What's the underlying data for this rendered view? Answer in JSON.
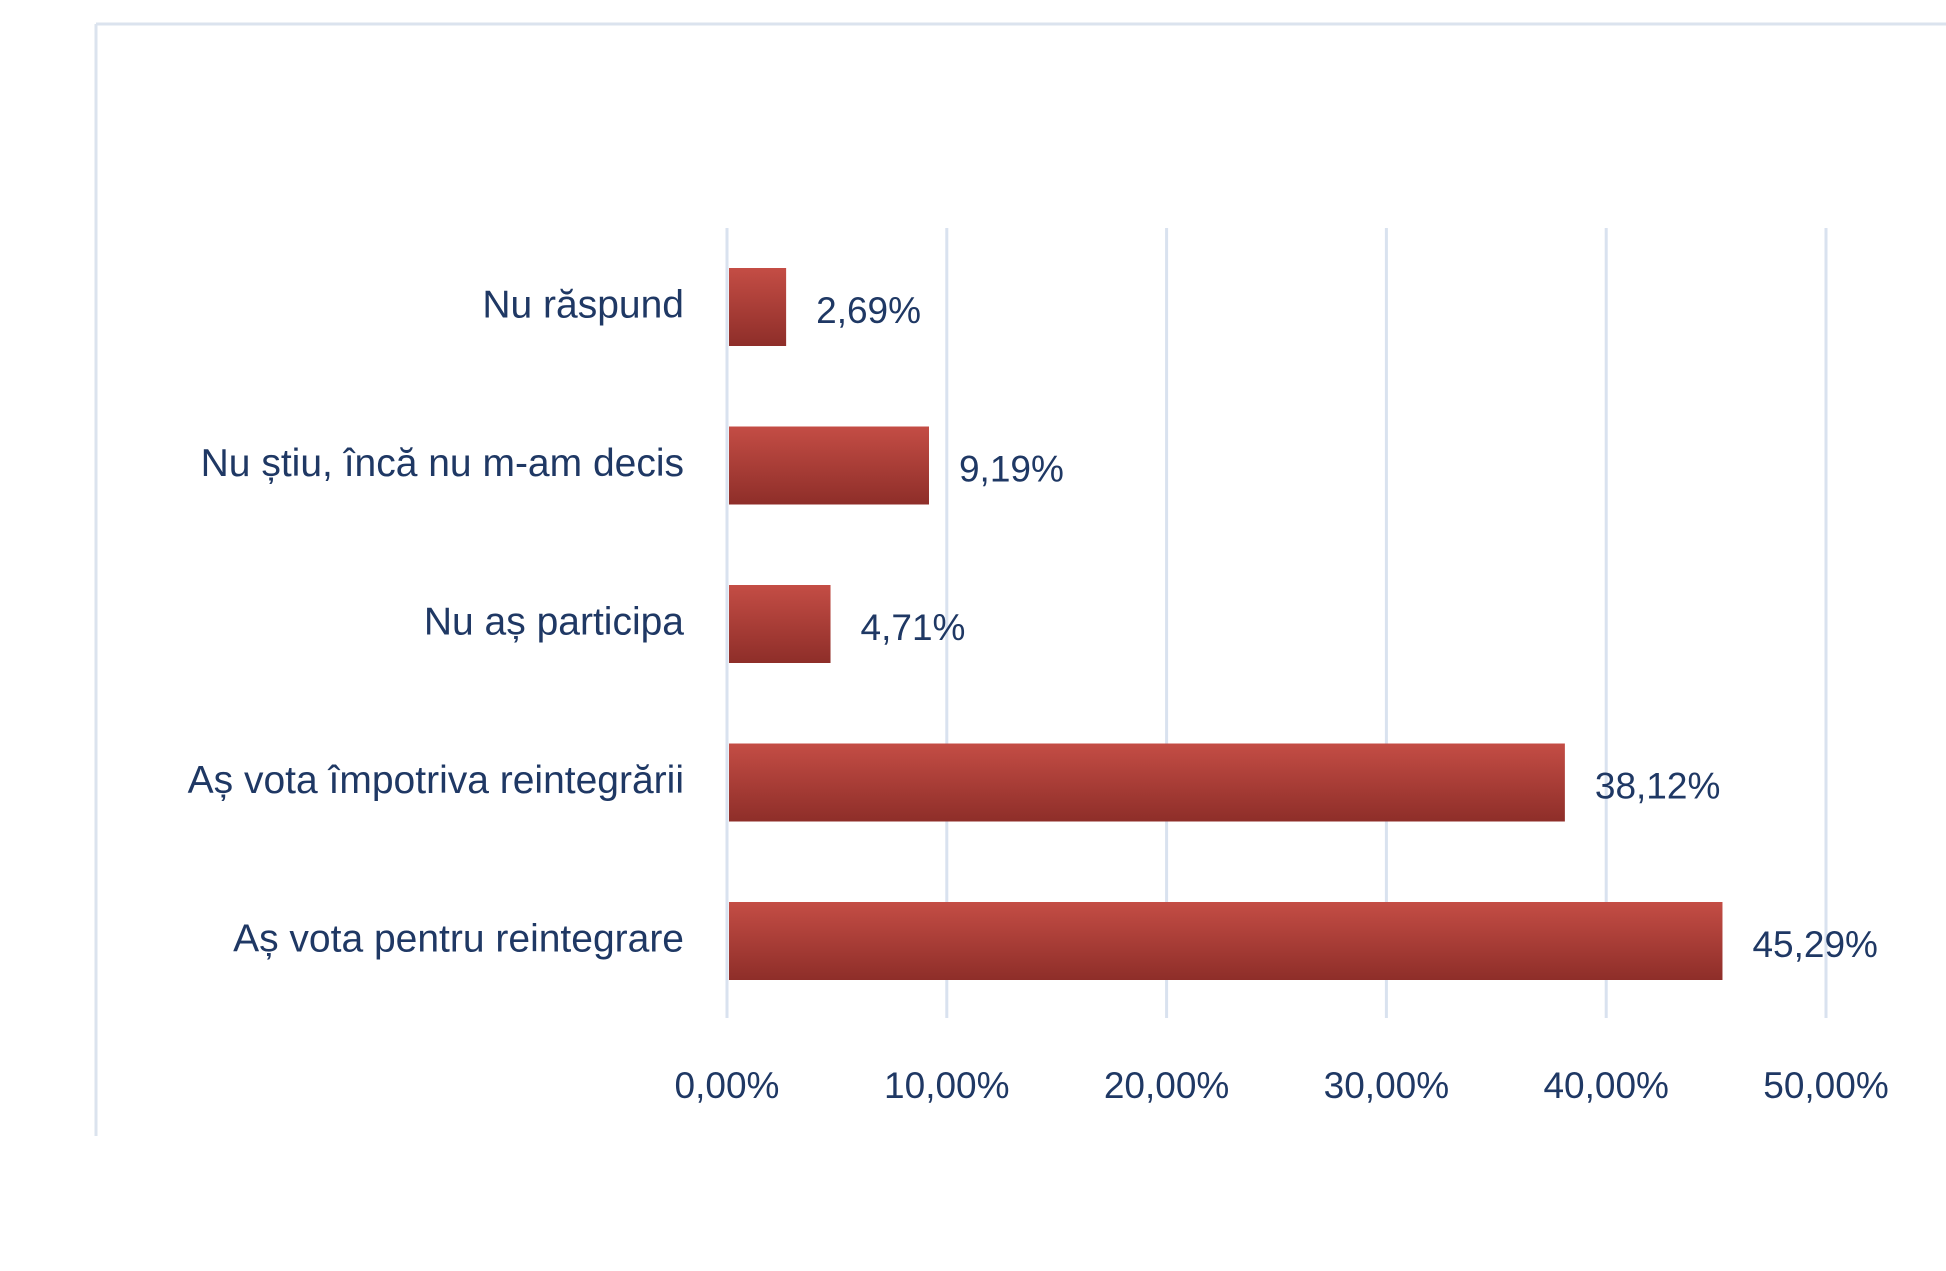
{
  "chart_data": {
    "type": "bar",
    "orientation": "horizontal",
    "title": "",
    "xlabel": "",
    "ylabel": "",
    "categories": [
      "Nu răspund",
      "Nu știu, încă nu m-am decis",
      "Nu aș participa",
      "Aș vota împotriva reintegrării",
      "Aș vota pentru reintegrare"
    ],
    "values": [
      2.69,
      9.19,
      4.71,
      38.12,
      45.29
    ],
    "data_labels": [
      "2,69%",
      "9,19%",
      "4,71%",
      "38,12%",
      "45,29%"
    ],
    "xlim": [
      0,
      50
    ],
    "x_ticks": [
      0,
      10,
      20,
      30,
      40,
      50
    ],
    "x_tick_labels": [
      "0,00%",
      "10,00%",
      "20,00%",
      "30,00%",
      "40,00%",
      "50,00%"
    ],
    "grid": "vertical",
    "legend": "none",
    "colors": {
      "bar_top": "#c44d45",
      "bar_bottom": "#8e2e29",
      "text": "#1f3864",
      "grid": "#d9e2ef",
      "frame": "#dbe3ee"
    }
  }
}
